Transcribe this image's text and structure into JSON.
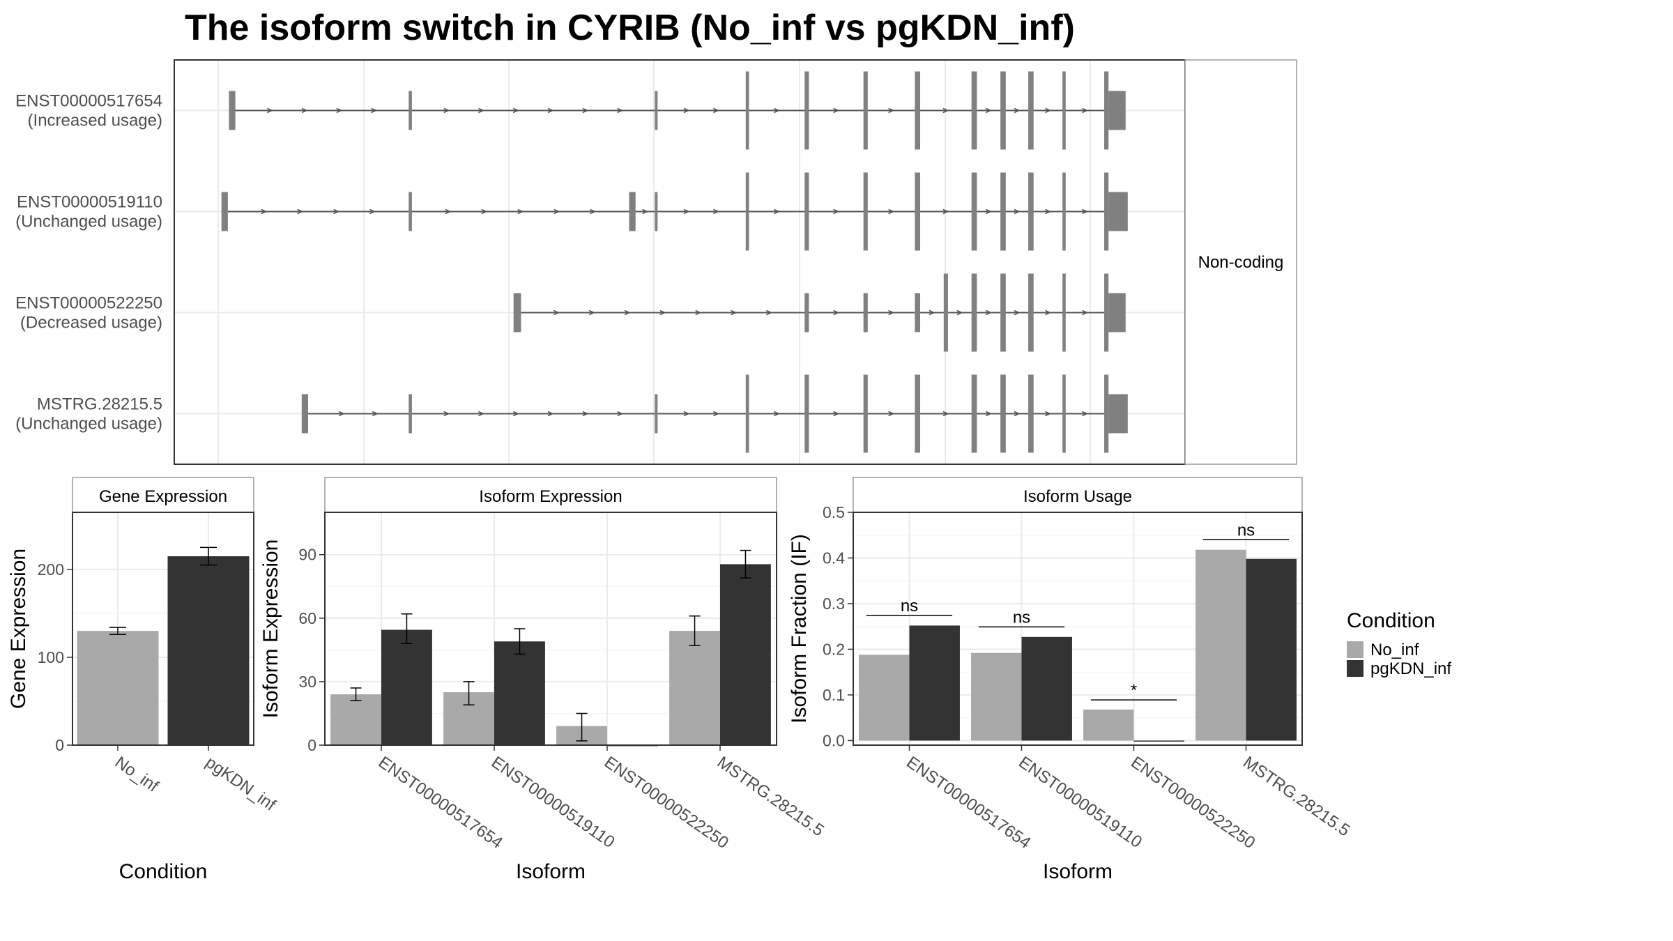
{
  "title": "The isoform switch in CYRIB (No_inf vs pgKDN_inf)",
  "colors": {
    "no_inf": "#a9a9a9",
    "pgkdn_inf": "#333333",
    "exon": "#808080",
    "intron": "#555555",
    "grid": "#ebebeb",
    "frame": "#333333",
    "strip_border": "#999999"
  },
  "transcript_panel": {
    "strip_label": "Non-coding",
    "transcripts": [
      {
        "id": "ENST00000517654",
        "usage": "(Increased usage)",
        "exons": [
          [
            12,
            18,
            "s"
          ],
          [
            180,
            183,
            "s"
          ],
          [
            410,
            412,
            "s"
          ],
          [
            495,
            498,
            "l"
          ],
          [
            550,
            554,
            "l"
          ],
          [
            605,
            609,
            "l"
          ],
          [
            653,
            658,
            "l"
          ],
          [
            706,
            711,
            "l"
          ],
          [
            733,
            738,
            "l"
          ],
          [
            759,
            764,
            "l"
          ],
          [
            791,
            794,
            "l"
          ],
          [
            830,
            834,
            "l"
          ],
          [
            834,
            850,
            "s"
          ]
        ]
      },
      {
        "id": "ENST00000519110",
        "usage": "(Unchanged usage)",
        "exons": [
          [
            5,
            11,
            "s"
          ],
          [
            180,
            183,
            "s"
          ],
          [
            386,
            392,
            "s"
          ],
          [
            410,
            412,
            "s"
          ],
          [
            495,
            498,
            "l"
          ],
          [
            550,
            554,
            "l"
          ],
          [
            605,
            609,
            "l"
          ],
          [
            653,
            658,
            "l"
          ],
          [
            706,
            711,
            "l"
          ],
          [
            733,
            738,
            "l"
          ],
          [
            759,
            764,
            "l"
          ],
          [
            791,
            794,
            "l"
          ],
          [
            830,
            834,
            "l"
          ],
          [
            834,
            852,
            "s"
          ]
        ]
      },
      {
        "id": "ENST00000522250",
        "usage": "(Decreased usage)",
        "exons": [
          [
            278,
            285,
            "s"
          ],
          [
            550,
            554,
            "s"
          ],
          [
            605,
            609,
            "s"
          ],
          [
            653,
            658,
            "s"
          ],
          [
            680,
            684,
            "l"
          ],
          [
            706,
            711,
            "l"
          ],
          [
            733,
            738,
            "l"
          ],
          [
            759,
            764,
            "l"
          ],
          [
            791,
            794,
            "l"
          ],
          [
            830,
            834,
            "l"
          ],
          [
            834,
            850,
            "s"
          ]
        ]
      },
      {
        "id": "MSTRG.28215.5",
        "usage": "(Unchanged usage)",
        "exons": [
          [
            80,
            86,
            "s"
          ],
          [
            180,
            183,
            "s"
          ],
          [
            410,
            412,
            "s"
          ],
          [
            495,
            498,
            "l"
          ],
          [
            550,
            554,
            "l"
          ],
          [
            605,
            609,
            "l"
          ],
          [
            653,
            658,
            "l"
          ],
          [
            706,
            711,
            "l"
          ],
          [
            733,
            738,
            "l"
          ],
          [
            759,
            764,
            "l"
          ],
          [
            791,
            794,
            "l"
          ],
          [
            830,
            834,
            "l"
          ],
          [
            834,
            852,
            "s"
          ]
        ]
      }
    ]
  },
  "chart_data": [
    {
      "type": "bar",
      "panel": "Gene Expression",
      "xlabel": "Condition",
      "ylabel": "Gene Expression",
      "ylim": [
        0,
        265
      ],
      "yticks": [
        0,
        100,
        200
      ],
      "categories": [
        "No_inf",
        "pgKDN_inf"
      ],
      "values": [
        130,
        215
      ],
      "errors": [
        [
          126,
          134
        ],
        [
          205,
          225
        ]
      ]
    },
    {
      "type": "bar",
      "panel": "Isoform Expression",
      "xlabel": "Isoform",
      "ylabel": "Isoform Expression",
      "ylim": [
        0,
        110
      ],
      "yticks": [
        0,
        30,
        60,
        90
      ],
      "categories": [
        "ENST00000517654",
        "ENST00000519110",
        "ENST00000522250",
        "MSTRG.28215.5"
      ],
      "series": [
        {
          "name": "No_inf",
          "values": [
            24,
            25,
            9,
            54
          ],
          "errors": [
            [
              21,
              27
            ],
            [
              19,
              30
            ],
            [
              2,
              15
            ],
            [
              47,
              61
            ]
          ]
        },
        {
          "name": "pgKDN_inf",
          "values": [
            54.5,
            49,
            0,
            85.5
          ],
          "errors": [
            [
              48,
              62
            ],
            [
              43,
              55
            ],
            [
              0,
              0
            ],
            [
              79,
              92
            ]
          ]
        }
      ]
    },
    {
      "type": "bar",
      "panel": "Isoform Usage",
      "xlabel": "Isoform",
      "ylabel": "Isoform Fraction (IF)",
      "ylim": [
        -0.01,
        0.5
      ],
      "yticks": [
        0.0,
        0.1,
        0.2,
        0.3,
        0.4,
        0.5
      ],
      "ytick_labels": [
        "0.0",
        "0.1",
        "0.2",
        "0.3",
        "0.4",
        "0.5"
      ],
      "categories": [
        "ENST00000517654",
        "ENST00000519110",
        "ENST00000522250",
        "MSTRG.28215.5"
      ],
      "series": [
        {
          "name": "No_inf",
          "values": [
            0.188,
            0.192,
            0.068,
            0.418
          ]
        },
        {
          "name": "pgKDN_inf",
          "values": [
            0.252,
            0.227,
            0,
            0.398
          ]
        }
      ],
      "significance": [
        {
          "label": "ns",
          "y": 0.274
        },
        {
          "label": "ns",
          "y": 0.249
        },
        {
          "label": "*",
          "y": 0.089
        },
        {
          "label": "ns",
          "y": 0.44
        }
      ]
    }
  ],
  "legend": {
    "title": "Condition",
    "items": [
      {
        "label": "No_inf",
        "color": "#a9a9a9"
      },
      {
        "label": "pgKDN_inf",
        "color": "#333333"
      }
    ]
  }
}
